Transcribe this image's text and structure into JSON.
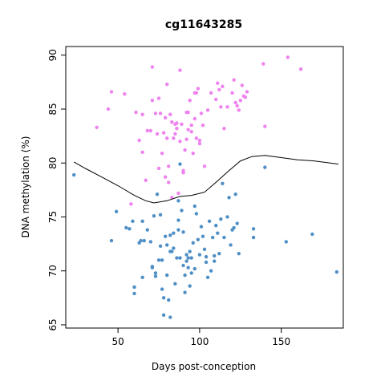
{
  "chart_data": {
    "type": "scatter",
    "title": "cg11643285",
    "xlabel": "Days post-conception",
    "ylabel": "DNA methylation (%)",
    "xlim": [
      18,
      188
    ],
    "ylim": [
      64.7,
      90.8
    ],
    "xticks": [
      50,
      100,
      150
    ],
    "yticks": [
      65,
      70,
      75,
      80,
      85,
      90
    ],
    "grid": false,
    "legend": "none",
    "series": [
      {
        "color": "#ee82ee",
        "points": [
          [
            37,
            83.3
          ],
          [
            44,
            85.0
          ],
          [
            46,
            86.6
          ],
          [
            54,
            86.4
          ],
          [
            58,
            76.2
          ],
          [
            61,
            84.7
          ],
          [
            63,
            82.1
          ],
          [
            65,
            81.0
          ],
          [
            65,
            84.5
          ],
          [
            67,
            78.4
          ],
          [
            68,
            83.0
          ],
          [
            70,
            83.0
          ],
          [
            71,
            85.8
          ],
          [
            71,
            88.9
          ],
          [
            73,
            84.6
          ],
          [
            74,
            82.7
          ],
          [
            75,
            79.5
          ],
          [
            75,
            86.0
          ],
          [
            76,
            84.6
          ],
          [
            77,
            80.9
          ],
          [
            78,
            82.8
          ],
          [
            79,
            78.7
          ],
          [
            79,
            84.2
          ],
          [
            80,
            87.3
          ],
          [
            80,
            82.3
          ],
          [
            81,
            79.7
          ],
          [
            81,
            78.2
          ],
          [
            82,
            84.5
          ],
          [
            83,
            83.8
          ],
          [
            83,
            76.8
          ],
          [
            84,
            82.3
          ],
          [
            85,
            83.6
          ],
          [
            85,
            82.7
          ],
          [
            86,
            83.2
          ],
          [
            86,
            83.7
          ],
          [
            87,
            77.2
          ],
          [
            88,
            88.6
          ],
          [
            88,
            82.0
          ],
          [
            89,
            83.6
          ],
          [
            90,
            79.3
          ],
          [
            90,
            79.1
          ],
          [
            91,
            81.2
          ],
          [
            92,
            82.2
          ],
          [
            92,
            84.7
          ],
          [
            93,
            84.7
          ],
          [
            93,
            83.1
          ],
          [
            94,
            85.8
          ],
          [
            95,
            82.9
          ],
          [
            95,
            83.5
          ],
          [
            96,
            80.9
          ],
          [
            97,
            86.5
          ],
          [
            97,
            84.1
          ],
          [
            98,
            86.5
          ],
          [
            98,
            82.3
          ],
          [
            99,
            86.9
          ],
          [
            100,
            81.8
          ],
          [
            100,
            82.1
          ],
          [
            101,
            84.6
          ],
          [
            102,
            83.5
          ],
          [
            103,
            79.7
          ],
          [
            105,
            84.9
          ],
          [
            107,
            86.5
          ],
          [
            110,
            85.9
          ],
          [
            111,
            87.4
          ],
          [
            112,
            86.8
          ],
          [
            113,
            85.2
          ],
          [
            114,
            87.1
          ],
          [
            115,
            83.2
          ],
          [
            117,
            85.2
          ],
          [
            120,
            86.5
          ],
          [
            121,
            87.7
          ],
          [
            122,
            85.6
          ],
          [
            123,
            85.3
          ],
          [
            124,
            84.9
          ],
          [
            125,
            85.8
          ],
          [
            126,
            87.2
          ],
          [
            127,
            86.2
          ],
          [
            128,
            86.1
          ],
          [
            129,
            86.6
          ],
          [
            139,
            89.2
          ],
          [
            140,
            83.4
          ],
          [
            154,
            89.8
          ],
          [
            162,
            88.7
          ]
        ]
      },
      {
        "color": "#4f8fc6",
        "points": [
          [
            23,
            78.9
          ],
          [
            46,
            72.8
          ],
          [
            49,
            75.5
          ],
          [
            55,
            74.0
          ],
          [
            57,
            73.9
          ],
          [
            59,
            74.6
          ],
          [
            60,
            68.5
          ],
          [
            60,
            67.9
          ],
          [
            63,
            72.6
          ],
          [
            64,
            72.8
          ],
          [
            65,
            74.6
          ],
          [
            65,
            69.4
          ],
          [
            66,
            72.8
          ],
          [
            68,
            73.8
          ],
          [
            70,
            72.7
          ],
          [
            71,
            70.3
          ],
          [
            71,
            70.4
          ],
          [
            72,
            75.1
          ],
          [
            73,
            69.8
          ],
          [
            73,
            69.5
          ],
          [
            74,
            77.1
          ],
          [
            75,
            71.0
          ],
          [
            76,
            75.2
          ],
          [
            76,
            72.3
          ],
          [
            77,
            71.0
          ],
          [
            77,
            68.3
          ],
          [
            78,
            67.5
          ],
          [
            78,
            65.9
          ],
          [
            79,
            73.2
          ],
          [
            80,
            72.4
          ],
          [
            80,
            69.6
          ],
          [
            81,
            67.3
          ],
          [
            82,
            65.7
          ],
          [
            82,
            73.3
          ],
          [
            82,
            71.8
          ],
          [
            83,
            71.8
          ],
          [
            84,
            73.5
          ],
          [
            84,
            72.1
          ],
          [
            85,
            68.8
          ],
          [
            86,
            71.2
          ],
          [
            87,
            76.5
          ],
          [
            87,
            74.7
          ],
          [
            87,
            73.8
          ],
          [
            88,
            71.2
          ],
          [
            88,
            79.9
          ],
          [
            89,
            75.6
          ],
          [
            90,
            73.6
          ],
          [
            90,
            70.5
          ],
          [
            91,
            69.6
          ],
          [
            91,
            68.0
          ],
          [
            92,
            71.5
          ],
          [
            92,
            70.9
          ],
          [
            93,
            71.2
          ],
          [
            93,
            70.3
          ],
          [
            94,
            71.8
          ],
          [
            94,
            68.6
          ],
          [
            95,
            71.2
          ],
          [
            95,
            69.8
          ],
          [
            96,
            72.6
          ],
          [
            97,
            70.2
          ],
          [
            97,
            76.0
          ],
          [
            98,
            75.3
          ],
          [
            99,
            72.9
          ],
          [
            100,
            71.5
          ],
          [
            101,
            74.1
          ],
          [
            102,
            73.2
          ],
          [
            103,
            72.0
          ],
          [
            104,
            70.8
          ],
          [
            104,
            71.3
          ],
          [
            105,
            69.4
          ],
          [
            106,
            74.6
          ],
          [
            107,
            70.0
          ],
          [
            108,
            73.1
          ],
          [
            109,
            70.9
          ],
          [
            109,
            71.4
          ],
          [
            110,
            74.2
          ],
          [
            111,
            73.5
          ],
          [
            112,
            71.6
          ],
          [
            113,
            74.8
          ],
          [
            114,
            78.1
          ],
          [
            115,
            73.1
          ],
          [
            117,
            75.0
          ],
          [
            118,
            76.8
          ],
          [
            119,
            72.4
          ],
          [
            120,
            73.8
          ],
          [
            121,
            74.0
          ],
          [
            122,
            77.1
          ],
          [
            123,
            74.4
          ],
          [
            124,
            71.6
          ],
          [
            133,
            73.9
          ],
          [
            133,
            73.1
          ],
          [
            140,
            79.6
          ],
          [
            153,
            72.7
          ],
          [
            169,
            73.4
          ],
          [
            184,
            69.9
          ]
        ]
      }
    ],
    "trend_line": {
      "color": "#000000",
      "points": [
        [
          23,
          80.1
        ],
        [
          30,
          79.5
        ],
        [
          40,
          78.7
        ],
        [
          50,
          77.9
        ],
        [
          60,
          77.0
        ],
        [
          67,
          76.5
        ],
        [
          72,
          76.3
        ],
        [
          80,
          76.5
        ],
        [
          88,
          76.9
        ],
        [
          95,
          77.0
        ],
        [
          103,
          77.3
        ],
        [
          110,
          78.2
        ],
        [
          118,
          79.3
        ],
        [
          125,
          80.2
        ],
        [
          132,
          80.6
        ],
        [
          140,
          80.7
        ],
        [
          150,
          80.5
        ],
        [
          160,
          80.3
        ],
        [
          170,
          80.2
        ],
        [
          180,
          80.0
        ],
        [
          185,
          79.9
        ]
      ]
    }
  }
}
